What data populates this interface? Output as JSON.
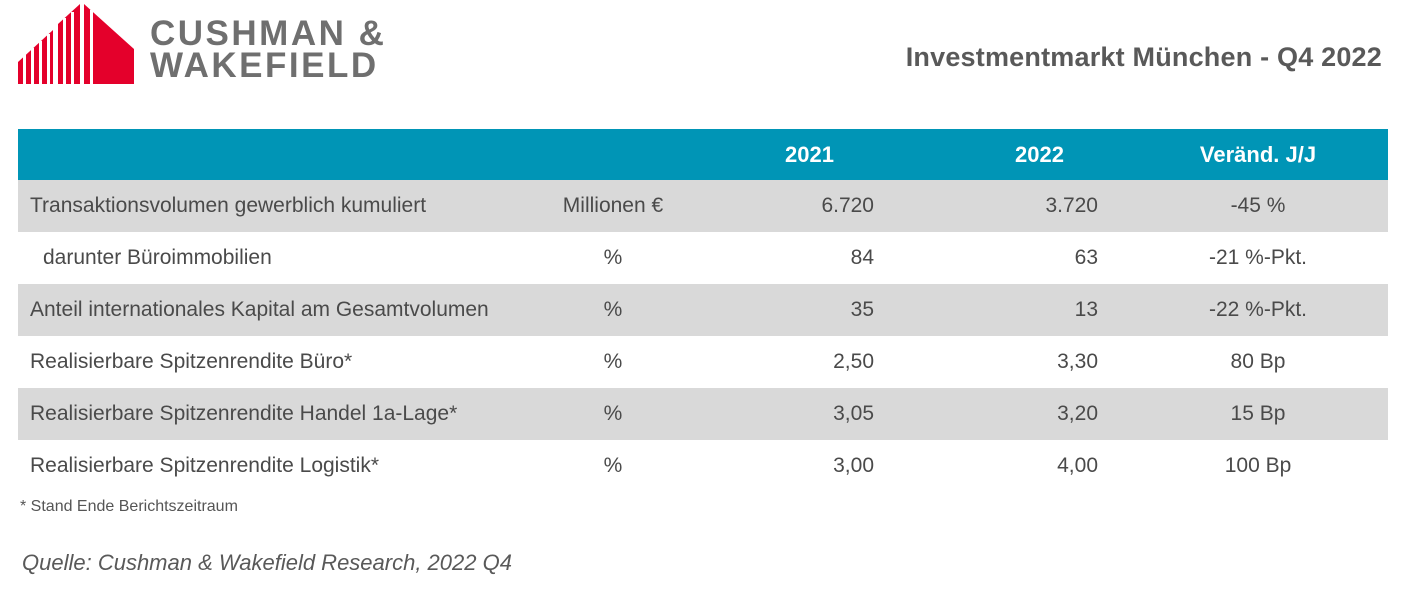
{
  "header": {
    "logo": {
      "line1": "CUSHMAN &",
      "line2": "WAKEFIELD",
      "brand_color": "#e4002b",
      "text_color": "#6f6f6f"
    },
    "title": "Investmentmarkt München - Q4 2022"
  },
  "table": {
    "header_color": "#0095b6",
    "columns": [
      "",
      "",
      "2021",
      "2022",
      "Veränd. J/J"
    ],
    "rows": [
      {
        "label": "Transaktionsvolumen gewerblich kumuliert",
        "unit": "Millionen €",
        "v2021": "6.720",
        "v2022": "3.720",
        "change": "-45 %"
      },
      {
        "label": "darunter Büroimmobilien",
        "unit": "%",
        "v2021": "84",
        "v2022": "63",
        "change": "-21 %-Pkt."
      },
      {
        "label": "Anteil internationales Kapital am Gesamtvolumen",
        "unit": "%",
        "v2021": "35",
        "v2022": "13",
        "change": "-22 %-Pkt."
      },
      {
        "label": "Realisierbare Spitzenrendite Büro*",
        "unit": "%",
        "v2021": "2,50",
        "v2022": "3,30",
        "change": "80 Bp"
      },
      {
        "label": "Realisierbare Spitzenrendite Handel 1a-Lage*",
        "unit": "%",
        "v2021": "3,05",
        "v2022": "3,20",
        "change": "15 Bp"
      },
      {
        "label": "Realisierbare Spitzenrendite Logistik*",
        "unit": "%",
        "v2021": "3,00",
        "v2022": "4,00",
        "change": "100 Bp"
      }
    ]
  },
  "footnote": "* Stand Ende Berichtszeitraum",
  "source": "Quelle: Cushman & Wakefield Research, 2022 Q4"
}
